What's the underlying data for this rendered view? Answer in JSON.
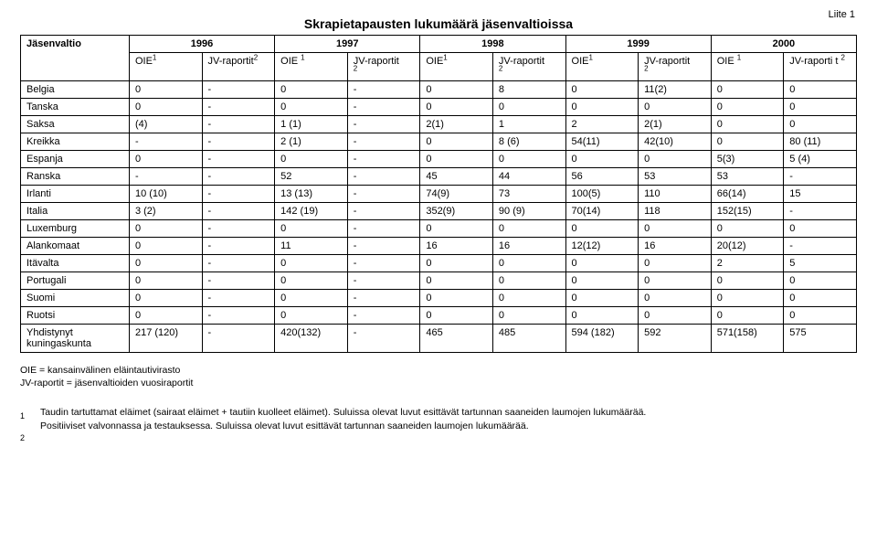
{
  "attachment_label": "Liite 1",
  "title": "Skrapietapausten lukumäärä jäsenvaltioissa",
  "headers": {
    "country": "Jäsenvaltio",
    "years": [
      "1996",
      "1997",
      "1998",
      "1999",
      "2000"
    ],
    "oie": "OIE",
    "oie_sup": "1",
    "jv": "JV-raportit",
    "jv_last": "JV-raporti\nt",
    "jv_sup": "2"
  },
  "rows": [
    {
      "c": "Belgia",
      "d": [
        "0",
        "-",
        "0",
        "-",
        "0",
        "8",
        "0",
        "11(2)",
        "0",
        "0"
      ]
    },
    {
      "c": "Tanska",
      "d": [
        "0",
        "-",
        "0",
        "-",
        "0",
        "0",
        "0",
        "0",
        "0",
        "0"
      ]
    },
    {
      "c": "Saksa",
      "d": [
        "(4)",
        "-",
        "1 (1)",
        "-",
        "2(1)",
        "1",
        "2",
        "2(1)",
        "0",
        "0"
      ]
    },
    {
      "c": "Kreikka",
      "d": [
        "-",
        "-",
        "2 (1)",
        "-",
        "0",
        "8 (6)",
        "54(11)",
        "42(10)",
        "0",
        "80 (11)"
      ]
    },
    {
      "c": "Espanja",
      "d": [
        "0",
        "-",
        "0",
        "-",
        "0",
        "0",
        "0",
        "0",
        "5(3)",
        "5 (4)"
      ]
    },
    {
      "c": "Ranska",
      "d": [
        "-",
        "-",
        "52",
        "-",
        "45",
        "44",
        "56",
        "53",
        "53",
        "-"
      ]
    },
    {
      "c": "Irlanti",
      "d": [
        "10 (10)",
        "-",
        "13 (13)",
        "-",
        "74(9)",
        "73",
        "100(5)",
        "110",
        "66(14)",
        "15"
      ]
    },
    {
      "c": "Italia",
      "d": [
        "3 (2)",
        "-",
        "142 (19)",
        "-",
        "352(9)",
        "90 (9)",
        "70(14)",
        "118",
        "152(15)",
        "-"
      ]
    },
    {
      "c": "Luxemburg",
      "d": [
        "0",
        "-",
        "0",
        "-",
        "0",
        "0",
        "0",
        "0",
        "0",
        "0"
      ]
    },
    {
      "c": "Alankomaat",
      "d": [
        "0",
        "-",
        "11",
        "-",
        "16",
        "16",
        "12(12)",
        "16",
        "20(12)",
        "-"
      ]
    },
    {
      "c": "Itävalta",
      "d": [
        "0",
        "-",
        "0",
        "-",
        "0",
        "0",
        "0",
        "0",
        "2",
        "5"
      ]
    },
    {
      "c": "Portugali",
      "d": [
        "0",
        "-",
        "0",
        "-",
        "0",
        "0",
        "0",
        "0",
        "0",
        "0"
      ]
    },
    {
      "c": "Suomi",
      "d": [
        "0",
        "-",
        "0",
        "-",
        "0",
        "0",
        "0",
        "0",
        "0",
        "0"
      ]
    },
    {
      "c": "Ruotsi",
      "d": [
        "0",
        "-",
        "0",
        "-",
        "0",
        "0",
        "0",
        "0",
        "0",
        "0"
      ]
    },
    {
      "c": "Yhdistynyt kuningaskunta",
      "d": [
        "217 (120)",
        "-",
        "420(132)",
        "-",
        "465",
        "485",
        "594 (182)",
        "592",
        "571(158)",
        "575"
      ]
    }
  ],
  "legend": {
    "line1": "OIE = kansainvälinen eläintautivirasto",
    "line2": "JV-raportit = jäsenvaltioiden vuosiraportit"
  },
  "footnotes": {
    "m1": "1",
    "m2": "2",
    "t1": "Taudin tartuttamat eläimet (sairaat eläimet + tautiin kuolleet eläimet). Suluissa olevat luvut esittävät tartunnan saaneiden laumojen lukumäärää.",
    "t2": "Positiiviset valvonnassa ja testauksessa. Suluissa olevat luvut esittävät tartunnan saaneiden laumojen lukumäärää."
  }
}
